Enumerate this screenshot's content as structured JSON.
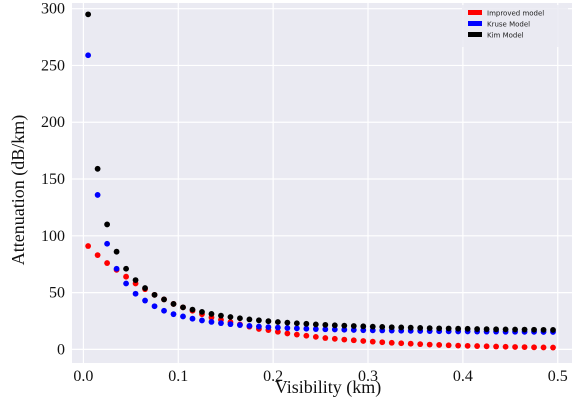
{
  "chart_data": {
    "type": "scatter",
    "title": "",
    "xlabel": "Visibility (km)",
    "ylabel": "Attenuation (dB/km)",
    "xlim": [
      -0.012,
      0.515
    ],
    "ylim": [
      -12,
      305
    ],
    "x_ticks": [
      0.0,
      0.1,
      0.2,
      0.3,
      0.4,
      0.5
    ],
    "x_tick_labels": [
      "0.0",
      "0.1",
      "0.2",
      "0.3",
      "0.4",
      "0.5"
    ],
    "y_ticks": [
      0,
      50,
      100,
      150,
      200,
      250,
      300
    ],
    "y_tick_labels": [
      "0",
      "50",
      "100",
      "150",
      "200",
      "250",
      "300"
    ],
    "grid": true,
    "legend_position": "top-right",
    "series": [
      {
        "name": "Improved model",
        "color": "#ff0000",
        "x": [
          0.005,
          0.015,
          0.025,
          0.035,
          0.045,
          0.055,
          0.065,
          0.075,
          0.085,
          0.095,
          0.105,
          0.115,
          0.125,
          0.135,
          0.145,
          0.155,
          0.165,
          0.175,
          0.185,
          0.195,
          0.205,
          0.215,
          0.225,
          0.235,
          0.245,
          0.255,
          0.265,
          0.275,
          0.285,
          0.295,
          0.305,
          0.315,
          0.325,
          0.335,
          0.345,
          0.355,
          0.365,
          0.375,
          0.385,
          0.395,
          0.405,
          0.415,
          0.425,
          0.435,
          0.445,
          0.455,
          0.465,
          0.475,
          0.485,
          0.495
        ],
        "y": [
          91,
          83,
          76,
          70,
          64,
          58,
          53,
          48,
          44,
          40,
          37,
          34,
          31,
          28,
          26,
          24,
          22,
          20,
          18,
          17,
          15.5,
          14,
          13,
          12,
          11,
          10,
          9.3,
          8.6,
          8,
          7.4,
          6.8,
          6.3,
          5.8,
          5.4,
          5,
          4.6,
          4.2,
          3.9,
          3.6,
          3.3,
          3.1,
          2.9,
          2.7,
          2.5,
          2.3,
          2.1,
          2,
          1.8,
          1.7,
          1.6
        ]
      },
      {
        "name": "Kruse Model",
        "color": "#0000ff",
        "x": [
          0.005,
          0.015,
          0.025,
          0.035,
          0.045,
          0.055,
          0.065,
          0.075,
          0.085,
          0.095,
          0.105,
          0.115,
          0.125,
          0.135,
          0.145,
          0.155,
          0.165,
          0.175,
          0.185,
          0.195,
          0.205,
          0.215,
          0.225,
          0.235,
          0.245,
          0.255,
          0.265,
          0.275,
          0.285,
          0.295,
          0.305,
          0.315,
          0.325,
          0.335,
          0.345,
          0.355,
          0.365,
          0.375,
          0.385,
          0.395,
          0.405,
          0.415,
          0.425,
          0.435,
          0.445,
          0.455,
          0.465,
          0.475,
          0.485,
          0.495
        ],
        "y": [
          259,
          136,
          93,
          71,
          58,
          49,
          43,
          38,
          34,
          31,
          29,
          27,
          25.5,
          24.2,
          23.1,
          22.2,
          21.4,
          20.7,
          20.1,
          19.6,
          19.2,
          18.8,
          18.5,
          18.2,
          17.9,
          17.7,
          17.5,
          17.3,
          17.1,
          16.9,
          16.8,
          16.7,
          16.5,
          16.4,
          16.3,
          16.2,
          16.1,
          16,
          15.9,
          15.8,
          15.8,
          15.7,
          15.6,
          15.6,
          15.5,
          15.5,
          15.4,
          15.4,
          15.3,
          15.3
        ]
      },
      {
        "name": "Kim Model",
        "color": "#000000",
        "x": [
          0.005,
          0.015,
          0.025,
          0.035,
          0.045,
          0.055,
          0.065,
          0.075,
          0.085,
          0.095,
          0.105,
          0.115,
          0.125,
          0.135,
          0.145,
          0.155,
          0.165,
          0.175,
          0.185,
          0.195,
          0.205,
          0.215,
          0.225,
          0.235,
          0.245,
          0.255,
          0.265,
          0.275,
          0.285,
          0.295,
          0.305,
          0.315,
          0.325,
          0.335,
          0.345,
          0.355,
          0.365,
          0.375,
          0.385,
          0.395,
          0.405,
          0.415,
          0.425,
          0.435,
          0.445,
          0.455,
          0.465,
          0.475,
          0.485,
          0.495
        ],
        "y": [
          295,
          159,
          110,
          86,
          71,
          61,
          54,
          48,
          44,
          40,
          37,
          35,
          33,
          31.2,
          29.7,
          28.5,
          27.4,
          26.4,
          25.6,
          24.8,
          24.1,
          23.5,
          23,
          22.5,
          22,
          21.6,
          21.2,
          20.9,
          20.6,
          20.3,
          20,
          19.8,
          19.5,
          19.3,
          19.1,
          18.9,
          18.7,
          18.5,
          18.4,
          18.2,
          18.1,
          17.9,
          17.8,
          17.7,
          17.6,
          17.5,
          17.4,
          17.3,
          17.2,
          17.1
        ]
      }
    ]
  }
}
